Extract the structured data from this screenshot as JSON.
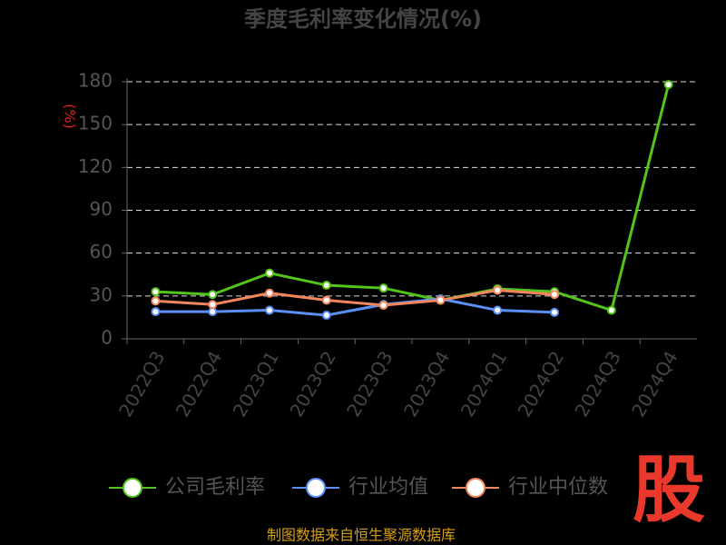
{
  "chart_data": {
    "type": "line",
    "title": "季度毛利率变化情况(%)",
    "y_label": "(%)",
    "categories": [
      "2022Q3",
      "2022Q4",
      "2023Q1",
      "2023Q2",
      "2023Q3",
      "2023Q4",
      "2024Q1",
      "2024Q2",
      "2024Q3",
      "2024Q4"
    ],
    "series": [
      {
        "name": "公司毛利率",
        "color": "#52c41a",
        "values": [
          33,
          31,
          46,
          37.5,
          35.5,
          27,
          35,
          33,
          20,
          178
        ]
      },
      {
        "name": "行业均值",
        "color": "#5b8ff9",
        "values": [
          19,
          19,
          20,
          16.5,
          24,
          28,
          20,
          18.5,
          null,
          null
        ]
      },
      {
        "name": "行业中位数",
        "color": "#f4865e",
        "values": [
          26.5,
          24,
          32,
          27,
          23.5,
          27,
          34,
          31,
          null,
          null
        ]
      }
    ],
    "ylim": [
      0,
      180
    ],
    "yticks": [
      0,
      30,
      60,
      90,
      120,
      150,
      180
    ],
    "grid": true,
    "source": "制图数据来自恒生聚源数据库",
    "logo": "股"
  }
}
